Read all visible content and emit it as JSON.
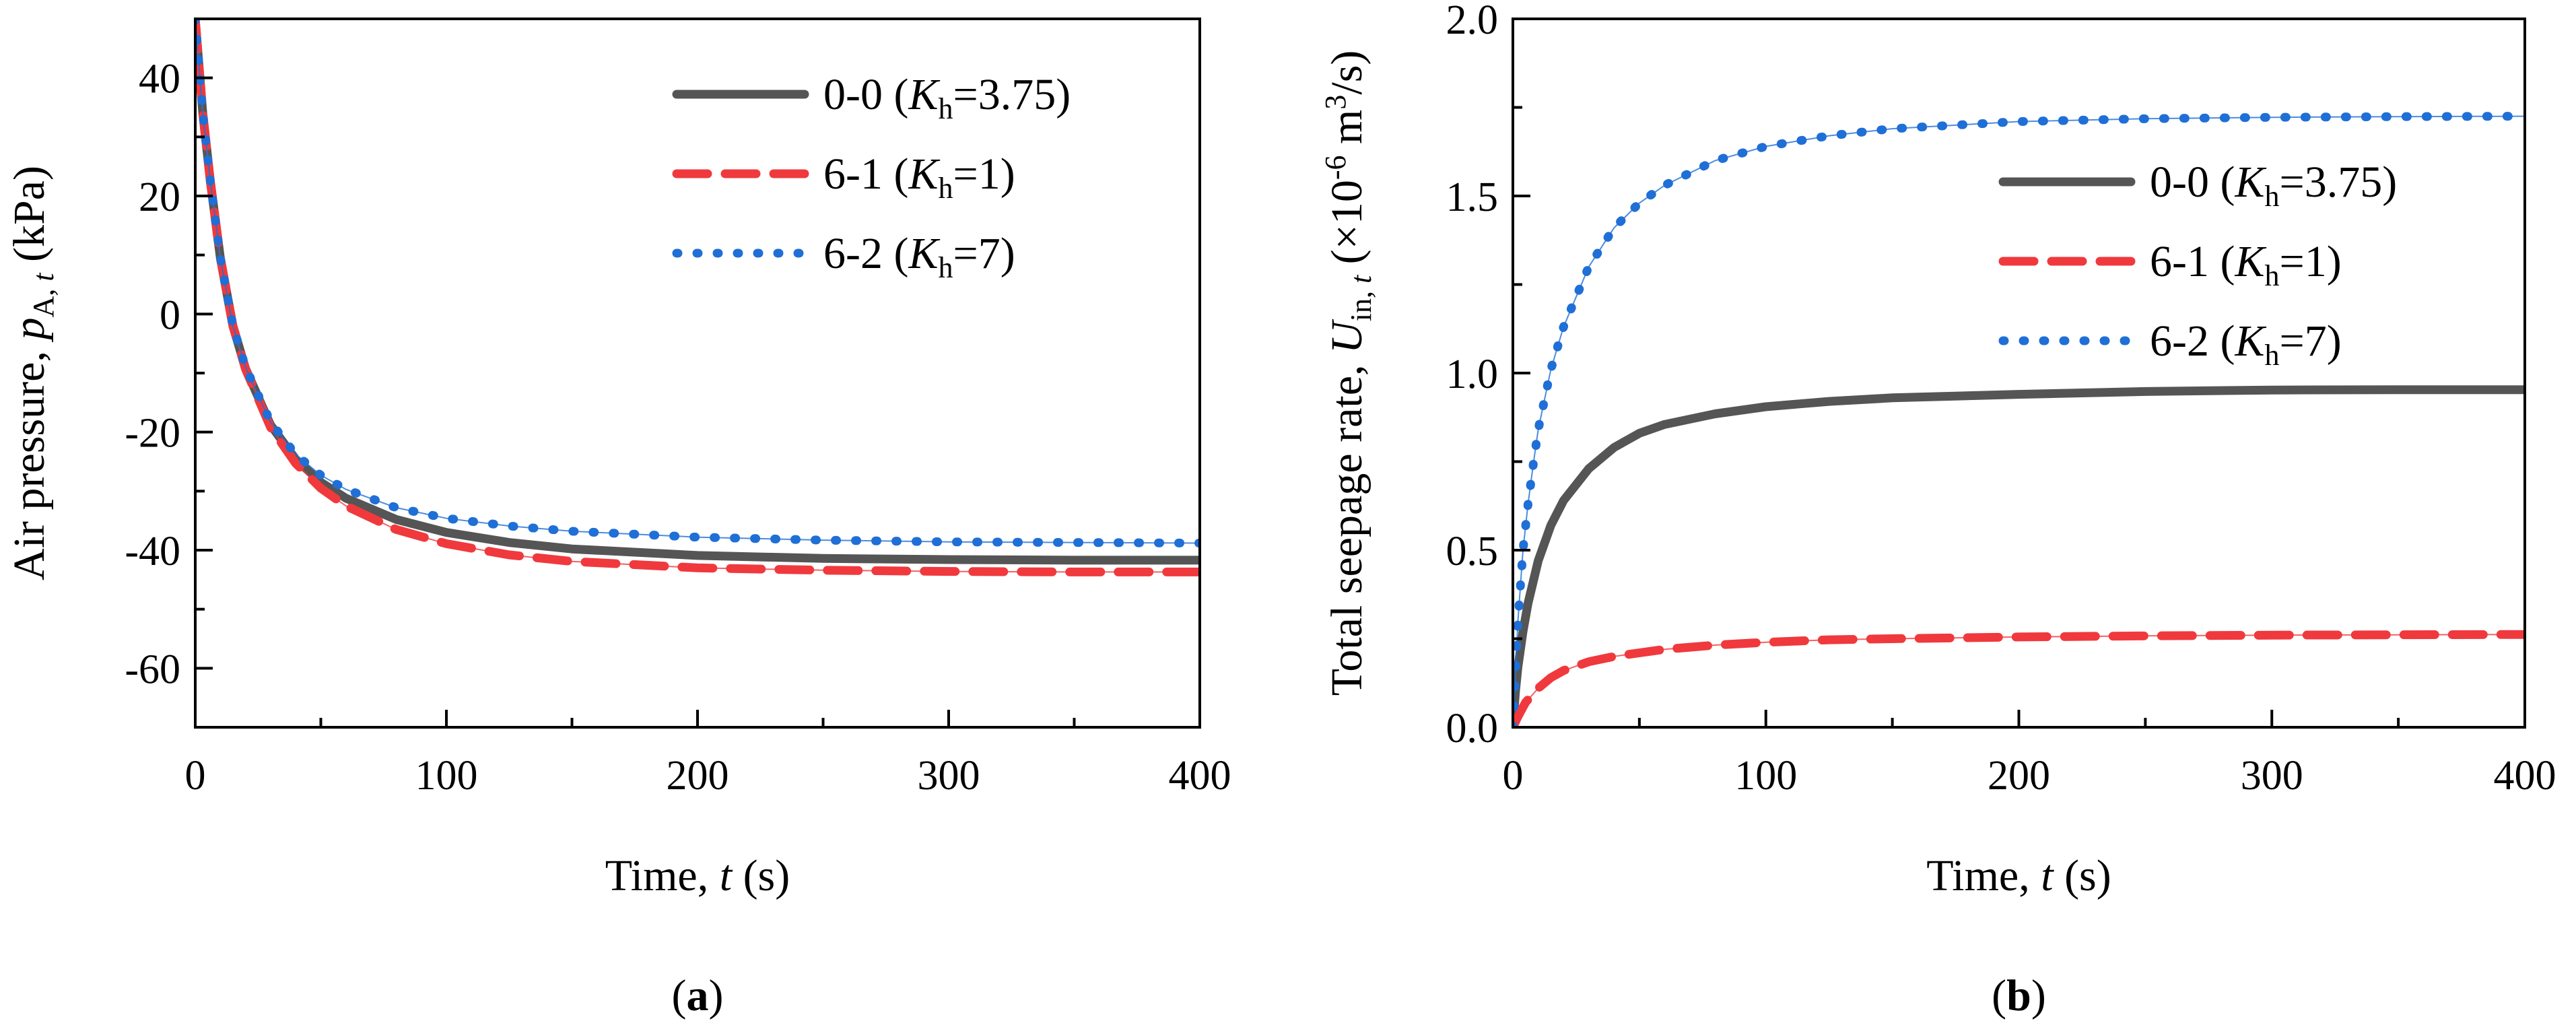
{
  "chart_data": [
    {
      "type": "line",
      "panel_label": "(a)",
      "panel_letter": "a",
      "xlabel": {
        "prefix": "Time, ",
        "var": "t",
        "suffix": " (s)"
      },
      "ylabel": {
        "prefix": "Air pressure, ",
        "var": "p",
        "sub1": "A, ",
        "sub2": "t",
        "suffix": " (kPa)"
      },
      "xlim": [
        0,
        400
      ],
      "ylim": [
        -70,
        50
      ],
      "xticks": [
        0,
        100,
        200,
        300,
        400
      ],
      "yticks": [
        -60,
        -40,
        -20,
        0,
        20,
        40
      ],
      "minor_x": 50,
      "minor_y": 10,
      "legend_position": "top-right",
      "series": [
        {
          "code": "0-0",
          "kh": "3.75",
          "style": "solid",
          "color": "#555555",
          "x": [
            0,
            3,
            6,
            10,
            15,
            20,
            30,
            40,
            50,
            60,
            80,
            100,
            125,
            150,
            200,
            250,
            300,
            350,
            400
          ],
          "y": [
            50,
            34,
            22.5,
            9.5,
            -2,
            -9.2,
            -18.8,
            -24.6,
            -28.5,
            -31.2,
            -34.8,
            -37.0,
            -38.7,
            -39.8,
            -40.9,
            -41.4,
            -41.6,
            -41.7,
            -41.7
          ]
        },
        {
          "code": "6-1",
          "kh": "1",
          "style": "dashed",
          "color": "#f0393d",
          "x": [
            0,
            3,
            6,
            10,
            15,
            20,
            30,
            40,
            50,
            60,
            80,
            100,
            125,
            150,
            200,
            250,
            300,
            350,
            400
          ],
          "y": [
            50,
            34,
            22.5,
            9.5,
            -2,
            -9.3,
            -19.2,
            -25.3,
            -29.5,
            -32.5,
            -36.5,
            -38.9,
            -40.8,
            -41.9,
            -43.0,
            -43.4,
            -43.6,
            -43.7,
            -43.7
          ]
        },
        {
          "code": "6-2",
          "kh": "7",
          "style": "dotted",
          "color": "#1f6fd6",
          "x": [
            0,
            3,
            6,
            10,
            15,
            20,
            30,
            40,
            50,
            60,
            80,
            100,
            125,
            150,
            200,
            250,
            300,
            350,
            400
          ],
          "y": [
            50,
            34,
            22.5,
            9.5,
            -2,
            -9.0,
            -18.3,
            -23.8,
            -27.3,
            -29.7,
            -32.8,
            -34.6,
            -35.9,
            -36.8,
            -37.8,
            -38.3,
            -38.6,
            -38.7,
            -38.8
          ]
        }
      ]
    },
    {
      "type": "line",
      "panel_label": "(b)",
      "panel_letter": "b",
      "xlabel": {
        "prefix": "Time, ",
        "var": "t",
        "suffix": " (s)"
      },
      "ylabel": {
        "prefix": "Total seepage rate, ",
        "var": "U",
        "sub1": "in, ",
        "sub2": "t",
        "suffix": " (×10",
        "exp": "-6",
        "suffix2": " m",
        "exp2": "3",
        "suffix3": "/s)"
      },
      "xlim": [
        0,
        400
      ],
      "ylim": [
        0,
        2.0
      ],
      "xticks": [
        0,
        100,
        200,
        300,
        400
      ],
      "yticks": [
        0.0,
        0.5,
        1.0,
        1.5,
        2.0
      ],
      "ytick_labels": [
        "0.0",
        "0.5",
        "1.0",
        "1.5",
        "2.0"
      ],
      "minor_x": 50,
      "minor_y": 0.25,
      "legend_position": "right",
      "series": [
        {
          "code": "0-0",
          "kh": "3.75",
          "style": "solid",
          "color": "#555555",
          "x": [
            0,
            1,
            2,
            4,
            6,
            10,
            15,
            20,
            30,
            40,
            50,
            60,
            80,
            100,
            125,
            150,
            200,
            250,
            300,
            350,
            400
          ],
          "y": [
            0,
            0.1,
            0.17,
            0.27,
            0.35,
            0.47,
            0.57,
            0.64,
            0.73,
            0.79,
            0.83,
            0.855,
            0.885,
            0.905,
            0.92,
            0.93,
            0.94,
            0.948,
            0.952,
            0.953,
            0.953
          ]
        },
        {
          "code": "6-1",
          "kh": "1",
          "style": "dashed",
          "color": "#f0393d",
          "x": [
            0,
            2,
            5,
            10,
            15,
            20,
            30,
            40,
            50,
            60,
            80,
            100,
            125,
            150,
            200,
            250,
            300,
            350,
            400
          ],
          "y": [
            0,
            0.03,
            0.07,
            0.11,
            0.14,
            0.16,
            0.185,
            0.2,
            0.21,
            0.22,
            0.232,
            0.24,
            0.247,
            0.25,
            0.255,
            0.258,
            0.26,
            0.261,
            0.262
          ]
        },
        {
          "code": "6-2",
          "kh": "7",
          "style": "dotted",
          "color": "#1f6fd6",
          "x": [
            0,
            1,
            2,
            4,
            6,
            8,
            10,
            15,
            20,
            30,
            40,
            50,
            60,
            80,
            100,
            125,
            150,
            200,
            250,
            300,
            350,
            400
          ],
          "y": [
            0,
            0.15,
            0.3,
            0.5,
            0.63,
            0.74,
            0.84,
            1.01,
            1.13,
            1.3,
            1.41,
            1.48,
            1.53,
            1.6,
            1.64,
            1.67,
            1.69,
            1.71,
            1.718,
            1.722,
            1.724,
            1.725
          ]
        }
      ]
    }
  ]
}
